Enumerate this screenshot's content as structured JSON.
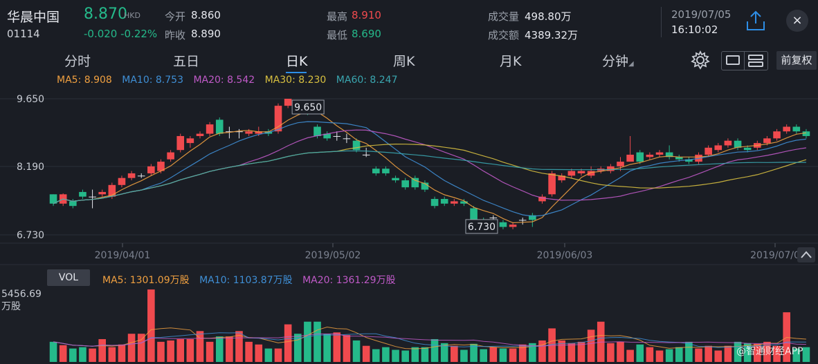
{
  "header": {
    "stock_name": "华晨中国",
    "stock_code": "01114",
    "price": "8.870",
    "currency": "HKD",
    "change": "-0.020  -0.22%",
    "open_label": "今开",
    "open": "8.860",
    "prev_close_label": "昨收",
    "prev_close": "8.890",
    "high_label": "最高",
    "high": "8.910",
    "low_label": "最低",
    "low": "8.690",
    "volume_label": "成交量",
    "volume": "498.80万",
    "turnover_label": "成交额",
    "turnover": "4389.32万",
    "date": "2019/07/05",
    "time": "16:10:02",
    "close_icon": "×"
  },
  "tabs": [
    {
      "label": "分时"
    },
    {
      "label": "五日"
    },
    {
      "label": "日K"
    },
    {
      "label": "周K"
    },
    {
      "label": "月K"
    },
    {
      "label": "分钟"
    }
  ],
  "active_tab": "日K",
  "adjust_button": "前复权",
  "icons": {
    "share": "share-icon",
    "settings": "gear-icon",
    "close": "close-icon",
    "layout_single": "single-pane-icon",
    "layout_double": "double-pane-icon",
    "scroll_up": "chevron-up-icon"
  },
  "ma_legend": [
    {
      "text": "MA5: 8.908",
      "color": "#f0a040"
    },
    {
      "text": "MA10: 8.753",
      "color": "#3f8fd6"
    },
    {
      "text": "MA20: 8.542",
      "color": "#c05ac8"
    },
    {
      "text": "MA30: 8.230",
      "color": "#d8c040"
    },
    {
      "text": "MA60: 8.247",
      "color": "#3aa6b0"
    }
  ],
  "volume_panel": {
    "button": "VOL",
    "legend": [
      {
        "text": "MA5: 1301.09万股",
        "color": "#f0a040"
      },
      {
        "text": "MA10: 1103.87万股",
        "color": "#3f8fd6"
      },
      {
        "text": "MA20: 1361.29万股",
        "color": "#c05ac8"
      }
    ],
    "max_value": "5456.69",
    "max_unit": "万股"
  },
  "watermark": "@智通财经APP",
  "colors": {
    "up": "#f04a4e",
    "down": "#25b98a",
    "background": "#1a1d24"
  },
  "chart_data": {
    "type": "candlestick",
    "y_ticks": [
      "9.650",
      "8.190",
      "6.730"
    ],
    "ylim": [
      6.73,
      9.65
    ],
    "x_ticks": [
      "2019/04/01",
      "2019/05/02",
      "2019/06/03",
      "2019/07/0"
    ],
    "annotations": {
      "max": "9.650",
      "min": "6.730"
    },
    "candles": [
      [
        7.6,
        7.4,
        7.6,
        7.35
      ],
      [
        7.4,
        7.6,
        7.62,
        7.35
      ],
      [
        7.45,
        7.35,
        7.5,
        7.3
      ],
      [
        7.65,
        7.55,
        7.7,
        7.5
      ],
      [
        7.55,
        7.55,
        7.7,
        7.3
      ],
      [
        7.6,
        7.65,
        7.7,
        7.55
      ],
      [
        7.55,
        7.8,
        7.85,
        7.5
      ],
      [
        7.8,
        7.95,
        8.0,
        7.75
      ],
      [
        7.95,
        8.05,
        8.1,
        7.9
      ],
      [
        8.0,
        8.0,
        8.05,
        7.95
      ],
      [
        8.05,
        8.2,
        8.25,
        8.0
      ],
      [
        8.1,
        8.3,
        8.35,
        8.05
      ],
      [
        8.35,
        8.5,
        8.55,
        8.3
      ],
      [
        8.55,
        8.85,
        8.9,
        8.5
      ],
      [
        8.7,
        8.8,
        8.85,
        8.6
      ],
      [
        8.85,
        8.9,
        8.95,
        8.8
      ],
      [
        8.9,
        9.1,
        9.15,
        8.85
      ],
      [
        9.2,
        8.9,
        9.25,
        8.85
      ],
      [
        8.95,
        8.95,
        9.05,
        8.8
      ],
      [
        8.95,
        8.95,
        9.0,
        8.8
      ],
      [
        8.9,
        8.95,
        9.0,
        8.85
      ],
      [
        8.9,
        8.95,
        9.05,
        8.85
      ],
      [
        8.95,
        8.9,
        9.0,
        8.85
      ],
      [
        8.95,
        9.5,
        9.55,
        8.9
      ],
      [
        9.5,
        9.65,
        9.65,
        9.45
      ],
      [
        9.55,
        9.5,
        9.6,
        9.45
      ],
      [
        9.4,
        9.35,
        9.5,
        9.3
      ],
      [
        9.05,
        8.85,
        9.1,
        8.8
      ],
      [
        8.9,
        8.8,
        8.95,
        8.75
      ],
      [
        8.85,
        8.85,
        8.95,
        8.75
      ],
      [
        8.8,
        8.8,
        8.9,
        8.7
      ],
      [
        8.75,
        8.55,
        8.8,
        8.5
      ],
      [
        8.45,
        8.45,
        8.6,
        8.4
      ],
      [
        8.15,
        8.05,
        8.2,
        8.0
      ],
      [
        8.15,
        8.05,
        8.2,
        8.0
      ],
      [
        7.95,
        7.9,
        8.0,
        7.85
      ],
      [
        7.9,
        7.75,
        7.95,
        7.7
      ],
      [
        7.95,
        7.75,
        8.0,
        7.7
      ],
      [
        7.85,
        7.7,
        7.9,
        7.65
      ],
      [
        7.5,
        7.35,
        7.55,
        7.3
      ],
      [
        7.5,
        7.4,
        7.55,
        7.35
      ],
      [
        7.4,
        7.45,
        7.5,
        7.35
      ],
      [
        7.45,
        7.4,
        7.5,
        7.35
      ],
      [
        7.3,
        7.0,
        7.35,
        6.95
      ],
      [
        7.05,
        7.0,
        7.1,
        6.9
      ],
      [
        7.1,
        7.1,
        7.15,
        6.95
      ],
      [
        7.0,
        6.9,
        7.05,
        6.85
      ],
      [
        6.9,
        6.95,
        7.0,
        6.85
      ],
      [
        7.05,
        7.05,
        7.1,
        6.95
      ],
      [
        7.15,
        7.05,
        7.2,
        6.9
      ],
      [
        7.45,
        7.55,
        7.6,
        7.4
      ],
      [
        7.6,
        8.05,
        8.1,
        7.55
      ],
      [
        7.9,
        8.0,
        8.05,
        7.85
      ],
      [
        8.0,
        8.1,
        8.15,
        7.95
      ],
      [
        8.05,
        8.1,
        8.15,
        8.0
      ],
      [
        8.0,
        8.1,
        8.2,
        7.95
      ],
      [
        8.1,
        8.15,
        8.2,
        8.05
      ],
      [
        8.1,
        8.2,
        8.25,
        8.05
      ],
      [
        8.2,
        8.3,
        8.4,
        8.1
      ],
      [
        8.3,
        8.45,
        8.85,
        8.3
      ],
      [
        8.5,
        8.3,
        8.55,
        8.25
      ],
      [
        8.4,
        8.45,
        8.5,
        8.35
      ],
      [
        8.45,
        8.5,
        8.55,
        8.4
      ],
      [
        8.5,
        8.4,
        8.65,
        8.35
      ],
      [
        8.4,
        8.35,
        8.45,
        8.3
      ],
      [
        8.35,
        8.3,
        8.4,
        8.25
      ],
      [
        8.3,
        8.45,
        8.5,
        8.25
      ],
      [
        8.45,
        8.6,
        8.65,
        8.4
      ],
      [
        8.55,
        8.65,
        8.7,
        8.5
      ],
      [
        8.65,
        8.75,
        8.8,
        8.6
      ],
      [
        8.75,
        8.6,
        8.8,
        8.55
      ],
      [
        8.6,
        8.55,
        8.65,
        8.5
      ],
      [
        8.6,
        8.7,
        8.75,
        8.55
      ],
      [
        8.7,
        8.8,
        8.85,
        8.65
      ],
      [
        8.8,
        8.95,
        9.0,
        8.75
      ],
      [
        8.95,
        9.05,
        9.1,
        8.9
      ],
      [
        9.05,
        8.95,
        9.1,
        8.9
      ],
      [
        8.95,
        8.85,
        9.0,
        8.8
      ]
    ],
    "volumes": [
      1500,
      1250,
      1000,
      1100,
      1000,
      1700,
      1100,
      1300,
      2100,
      2100,
      5400,
      1500,
      1600,
      1700,
      1700,
      2300,
      1500,
      1900,
      1900,
      2300,
      1500,
      1300,
      1000,
      1000,
      2800,
      2100,
      3000,
      3000,
      2100,
      2200,
      2000,
      1600,
      1200,
      950,
      1100,
      900,
      850,
      1100,
      1100,
      1700,
      1400,
      1200,
      900,
      1350,
      950,
      1100,
      1000,
      1000,
      1300,
      1400,
      1600,
      2500,
      1600,
      1400,
      1500,
      2400,
      3000,
      1400,
      1500,
      900,
      1300,
      1100,
      850,
      950,
      1100,
      1500,
      1000,
      1200,
      850,
      1200,
      1500,
      1400,
      1350,
      1500,
      1200,
      3700,
      1000,
      1100
    ]
  }
}
